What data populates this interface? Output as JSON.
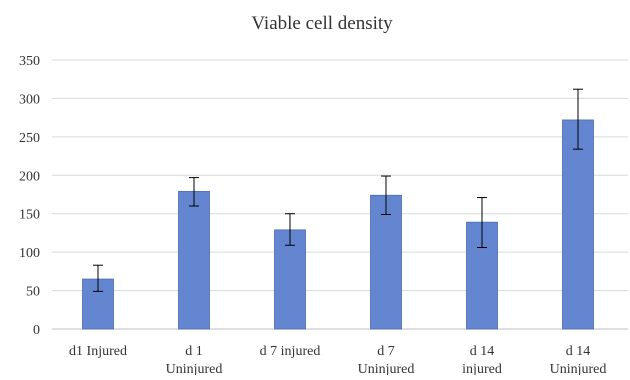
{
  "chart_data": {
    "type": "bar",
    "title": "Viable cell density",
    "xlabel": "",
    "ylabel": "",
    "categories": [
      [
        "d1 Injured"
      ],
      [
        "d 1",
        "Uninjured"
      ],
      [
        "d 7 injured"
      ],
      [
        "d 7",
        "Uninjured"
      ],
      [
        "d 14",
        "injured"
      ],
      [
        "d 14",
        "Uninjured"
      ]
    ],
    "values": [
      65,
      179,
      129,
      174,
      139,
      272
    ],
    "error_low": [
      49,
      160,
      109,
      149,
      106,
      234
    ],
    "error_high": [
      83,
      197,
      150,
      199,
      171,
      312
    ],
    "ylim": [
      0,
      350
    ],
    "yticks": [
      0,
      50,
      100,
      150,
      200,
      250,
      300,
      350
    ],
    "grid": true,
    "legend": "none",
    "colors": {
      "bar": "#6486D1",
      "bar_edge": "#4A6BB5",
      "grid": "#D9D9D9",
      "axis": "#BFBFBF",
      "error_bar": "#000000"
    }
  }
}
